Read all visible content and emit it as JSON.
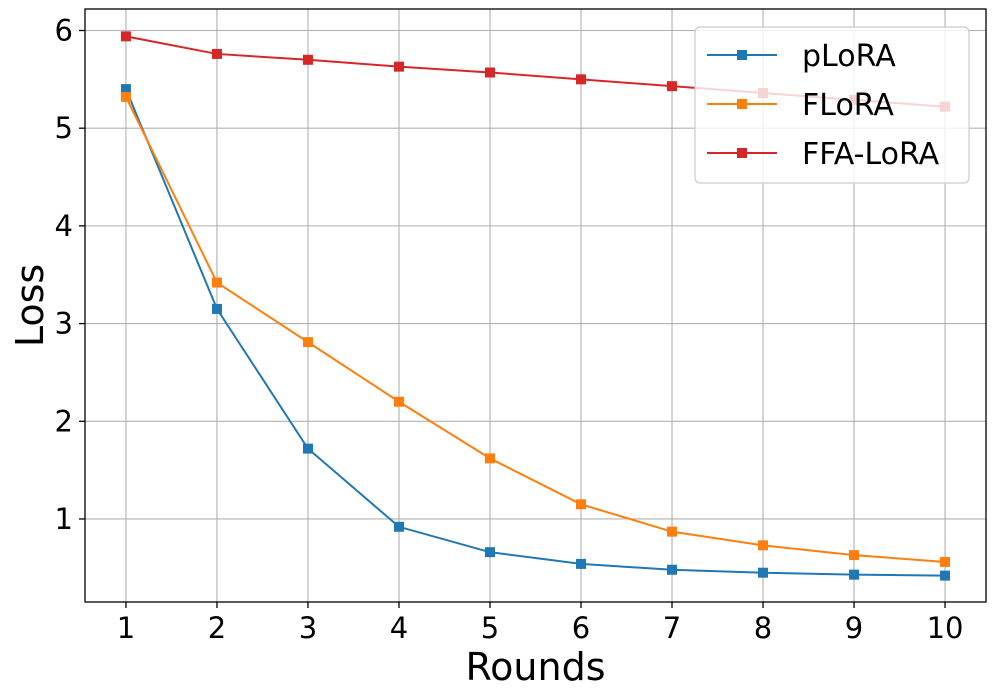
{
  "chart_data": {
    "type": "line",
    "title": "",
    "xlabel": "Rounds",
    "ylabel": "Loss",
    "x": [
      1,
      2,
      3,
      4,
      5,
      6,
      7,
      8,
      9,
      10
    ],
    "xticks": [
      1,
      2,
      3,
      4,
      5,
      6,
      7,
      8,
      9,
      10
    ],
    "yticks": [
      1,
      2,
      3,
      4,
      5,
      6
    ],
    "xlim": [
      0.55,
      10.45
    ],
    "ylim": [
      0.15,
      6.22
    ],
    "grid": true,
    "legend_position": "top-right",
    "marker": "square",
    "series": [
      {
        "name": "pLoRA",
        "color": "#1f77b4",
        "values": [
          5.4,
          3.15,
          1.72,
          0.92,
          0.66,
          0.54,
          0.48,
          0.45,
          0.43,
          0.42
        ]
      },
      {
        "name": "FLoRA",
        "color": "#ff7f0e",
        "values": [
          5.32,
          3.42,
          2.81,
          2.2,
          1.62,
          1.15,
          0.87,
          0.73,
          0.63,
          0.56
        ]
      },
      {
        "name": "FFA-LoRA",
        "color": "#d62728",
        "values": [
          5.94,
          5.76,
          5.7,
          5.63,
          5.57,
          5.5,
          5.43,
          5.36,
          5.29,
          5.22
        ]
      }
    ]
  }
}
